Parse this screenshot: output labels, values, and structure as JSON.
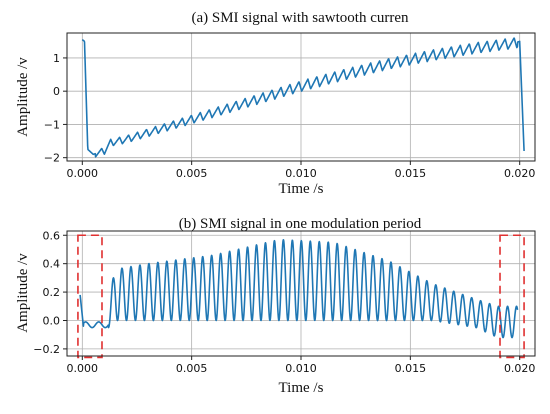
{
  "chart_data": [
    {
      "type": "line",
      "title": "(a) SMI signal with sawtooth curren",
      "xlabel": "Time /s",
      "ylabel": "Amplitude /v",
      "xlim": [
        -0.0007,
        0.0207
      ],
      "ylim": [
        -2.1,
        1.75
      ],
      "xticks": [
        0.0,
        0.005,
        0.01,
        0.015,
        0.02
      ],
      "xtick_labels": [
        "0.000",
        "0.005",
        "0.010",
        "0.015",
        "0.020"
      ],
      "yticks": [
        -2,
        -1,
        0,
        1
      ],
      "ytick_labels": [
        "−2",
        "−1",
        "0",
        "1"
      ],
      "grid": true,
      "color": "#1f77b4",
      "series": [
        {
          "description": "sawtooth ramp with superimposed fringes",
          "x": [
            0.0,
            0.0001,
            0.00025,
            0.0005,
            0.001,
            0.0013,
            0.002,
            0.004,
            0.006,
            0.008,
            0.01,
            0.012,
            0.014,
            0.016,
            0.018,
            0.0198,
            0.02,
            0.0202
          ],
          "y": [
            1.55,
            1.5,
            -1.75,
            -1.9,
            -1.8,
            -1.55,
            -1.45,
            -1.05,
            -0.65,
            -0.25,
            0.15,
            0.5,
            0.82,
            1.08,
            1.3,
            1.45,
            1.5,
            -1.8
          ],
          "fringe_period": 0.00041
        }
      ]
    },
    {
      "type": "line",
      "title": "(b) SMI signal in one modulation period",
      "xlabel": "Time /s",
      "ylabel": "Amplitude /v",
      "xlim": [
        -0.0007,
        0.0207
      ],
      "ylim": [
        -0.25,
        0.63
      ],
      "xticks": [
        0.0,
        0.005,
        0.01,
        0.015,
        0.02
      ],
      "xtick_labels": [
        "0.000",
        "0.005",
        "0.010",
        "0.015",
        "0.020"
      ],
      "yticks": [
        -0.2,
        0.0,
        0.2,
        0.4,
        0.6
      ],
      "ytick_labels": [
        "−0.2",
        "0.0",
        "0.2",
        "0.4",
        "0.6"
      ],
      "grid": true,
      "color": "#1f77b4",
      "series": [
        {
          "description": "fringe signal with amplitude envelope",
          "envelope_t": [
            0.0,
            0.0012,
            0.0015,
            0.003,
            0.006,
            0.009,
            0.0115,
            0.014,
            0.016,
            0.018,
            0.019
          ],
          "envelope_max": [
            0.15,
            0.15,
            0.36,
            0.4,
            0.46,
            0.57,
            0.55,
            0.42,
            0.26,
            0.15,
            0.1
          ],
          "envelope_min": [
            -0.05,
            -0.05,
            0.0,
            0.0,
            0.0,
            0.0,
            0.0,
            0.0,
            0.0,
            -0.05,
            -0.12
          ],
          "fringe_period": 0.00041
        }
      ],
      "annotations": [
        {
          "shape": "dashed-bracket",
          "color": "#e03030",
          "x": [
            -0.0002,
            0.0009
          ],
          "y": [
            -0.26,
            0.6
          ]
        },
        {
          "shape": "dashed-bracket",
          "color": "#e03030",
          "x": [
            0.0191,
            0.0202
          ],
          "y": [
            -0.26,
            0.6
          ]
        }
      ]
    }
  ]
}
